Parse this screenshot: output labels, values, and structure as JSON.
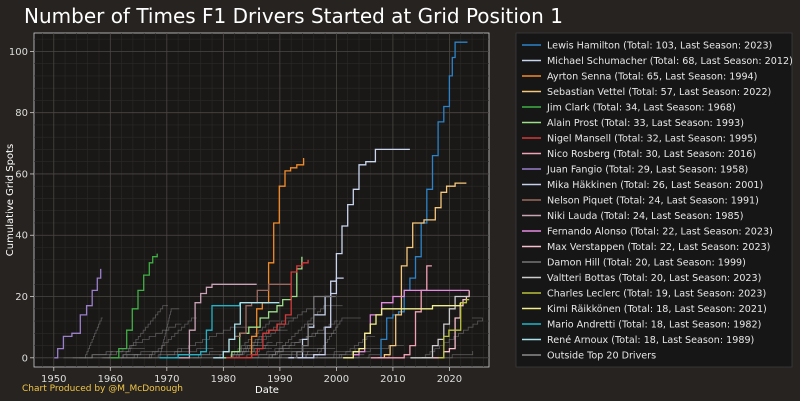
{
  "chart_data": {
    "type": "line",
    "title": "Number of Times F1 Drivers Started at Grid Position 1",
    "xlabel": "Date",
    "ylabel": "Cumulative Grid Spots",
    "xlim": [
      1946.5,
      2027
    ],
    "ylim": [
      -3,
      106
    ],
    "xticks": [
      1950,
      1960,
      1970,
      1980,
      1990,
      2000,
      2010,
      2020
    ],
    "yticks": [
      0,
      20,
      40,
      60,
      80,
      100
    ],
    "grid": true,
    "legend_position": "right",
    "credit": "Chart Produced by @M_McDonough",
    "series": [
      {
        "name": "Lewis Hamilton (Total: 103, Last Season: 2023)",
        "color": "#2b83c9",
        "x": [
          2007.3,
          2007.9,
          2008.9,
          2010,
          2011,
          2012,
          2013,
          2014,
          2015,
          2016,
          2017,
          2018,
          2019,
          2020,
          2020.5,
          2021,
          2023.2
        ],
        "y": [
          0,
          6,
          13,
          14,
          15,
          22,
          26,
          33,
          44,
          55,
          66,
          77,
          82,
          92,
          98,
          103,
          103
        ]
      },
      {
        "name": "Michael Schumacher (Total: 68, Last Season: 2012)",
        "color": "#c8d6ee",
        "x": [
          1991.7,
          1994,
          1995,
          1996,
          1998,
          1999,
          2000,
          2001,
          2002,
          2003,
          2004,
          2004.9,
          2005.2,
          2006.9,
          2010,
          2012,
          2013
        ],
        "y": [
          0,
          6,
          10,
          14,
          20,
          25,
          34,
          43,
          50,
          55,
          63,
          63,
          64,
          68,
          68,
          68,
          68
        ]
      },
      {
        "name": "Ayrton Senna (Total: 65, Last Season: 1994)",
        "color": "#f28c28",
        "x": [
          1984.1,
          1985,
          1985.9,
          1986.9,
          1988,
          1988.9,
          1989.9,
          1990.9,
          1991.9,
          1993,
          1994.2,
          1994.3
        ],
        "y": [
          0,
          7,
          16,
          18,
          31,
          44,
          56,
          61,
          62,
          63,
          65,
          65
        ]
      },
      {
        "name": "Sebastian Vettel (Total: 57, Last Season: 2022)",
        "color": "#f6c87a",
        "x": [
          2007.3,
          2008.5,
          2009.5,
          2010.5,
          2011.5,
          2012.5,
          2013.5,
          2014,
          2015.5,
          2016.5,
          2017.5,
          2018.5,
          2019.5,
          2021,
          2023
        ],
        "y": [
          0,
          1,
          4,
          14,
          30,
          36,
          44,
          44,
          45,
          45,
          49,
          54,
          56,
          57,
          57
        ]
      },
      {
        "name": "Jim Clark (Total: 34, Last Season: 1968)",
        "color": "#3fb045",
        "x": [
          1960.1,
          1961.5,
          1962.9,
          1963.9,
          1964.9,
          1965.9,
          1966.9,
          1967.5,
          1968.3
        ],
        "y": [
          0,
          3,
          9,
          16,
          22,
          27,
          31,
          33,
          34
        ]
      },
      {
        "name": "Alain Prost (Total: 33, Last Season: 1993)",
        "color": "#9de08a",
        "x": [
          1980.1,
          1981.5,
          1982.9,
          1984.5,
          1986.5,
          1988,
          1989.5,
          1990.5,
          1992,
          1993,
          1993.9
        ],
        "y": [
          0,
          2,
          8,
          10,
          13,
          15,
          17,
          19,
          20,
          29,
          33
        ]
      },
      {
        "name": "Nigel Mansell (Total: 32, Last Season: 1995)",
        "color": "#d23a3a",
        "x": [
          1980.5,
          1985,
          1986,
          1987,
          1988,
          1989.5,
          1991,
          1992,
          1993,
          1994,
          1995
        ],
        "y": [
          0,
          1,
          3,
          8,
          9,
          11,
          14,
          28,
          30,
          31,
          32
        ]
      },
      {
        "name": "Nico Rosberg (Total: 30, Last Season: 2016)",
        "color": "#f2a2b6",
        "x": [
          2006.1,
          2010,
          2012,
          2013,
          2014,
          2015,
          2016,
          2016.9
        ],
        "y": [
          0,
          0,
          1,
          4,
          15,
          22,
          30,
          30
        ]
      },
      {
        "name": "Juan Fangio (Total: 29, Last Season: 1958)",
        "color": "#9a7fcc",
        "x": [
          1950.1,
          1950.7,
          1951.7,
          1953.2,
          1954.7,
          1955.8,
          1956.8,
          1957.7,
          1958.3
        ],
        "y": [
          0,
          3,
          7,
          8,
          14,
          17,
          22,
          26,
          29
        ]
      },
      {
        "name": "Mika Häkkinen (Total: 26, Last Season: 2001)",
        "color": "#c8d0ec",
        "x": [
          1991.5,
          1996,
          1998,
          1999,
          2000,
          2001.3
        ],
        "y": [
          0,
          1,
          10,
          21,
          26,
          26
        ]
      },
      {
        "name": "Nelson Piquet (Total: 24, Last Season: 1991)",
        "color": "#9c6a5f",
        "x": [
          1978.7,
          1980,
          1981,
          1982,
          1983,
          1984,
          1985,
          1986,
          1988,
          1991.9
        ],
        "y": [
          0,
          2,
          6,
          7,
          8,
          17,
          18,
          22,
          24,
          24
        ]
      },
      {
        "name": "Niki Lauda (Total: 24, Last Season: 1985)",
        "color": "#c9a3b5",
        "x": [
          1971.5,
          1974,
          1975,
          1976,
          1977,
          1978,
          1985.9
        ],
        "y": [
          0,
          9,
          18,
          21,
          23,
          24,
          24
        ]
      },
      {
        "name": "Fernando Alonso (Total: 22, Last Season: 2023)",
        "color": "#e58be0",
        "x": [
          2001.2,
          2003,
          2004,
          2005,
          2006,
          2008,
          2010,
          2012,
          2023.5
        ],
        "y": [
          0,
          1,
          2,
          8,
          14,
          18,
          20,
          22,
          22
        ]
      },
      {
        "name": "Max Verstappen (Total: 22, Last Season: 2023)",
        "color": "#f6c0cc",
        "x": [
          2015.1,
          2019,
          2020,
          2021,
          2021.9,
          2022.4,
          2023,
          2023.5
        ],
        "y": [
          0,
          2,
          3,
          13,
          17,
          19,
          20,
          22
        ]
      },
      {
        "name": "Damon Hill (Total: 20, Last Season: 1999)",
        "color": "#777777",
        "x": [
          1992.5,
          1993,
          1994,
          1995,
          1996,
          1999.9
        ],
        "y": [
          0,
          2,
          4,
          11,
          20,
          20
        ]
      },
      {
        "name": "Valtteri Bottas (Total: 20, Last Season: 2023)",
        "color": "#cccccc",
        "x": [
          2013.1,
          2017,
          2018,
          2019,
          2020,
          2021,
          2023.5
        ],
        "y": [
          0,
          4,
          6,
          11,
          16,
          20,
          20
        ]
      },
      {
        "name": "Charles Leclerc (Total: 19, Last Season: 2023)",
        "color": "#b9c23c",
        "x": [
          2018.1,
          2019,
          2019.9,
          2022,
          2023,
          2023.5
        ],
        "y": [
          0,
          7,
          9,
          18,
          19,
          19
        ]
      },
      {
        "name": "Kimi Räikkönen (Total: 18, Last Season: 2021)",
        "color": "#f2f08a",
        "x": [
          2001.2,
          2003,
          2004,
          2005,
          2006,
          2007,
          2008,
          2017,
          2021.9
        ],
        "y": [
          0,
          2,
          3,
          8,
          11,
          14,
          16,
          17,
          18
        ]
      },
      {
        "name": "Mario Andretti (Total: 18, Last Season: 1982)",
        "color": "#1fb5c8",
        "x": [
          1968.7,
          1972,
          1976,
          1977,
          1978,
          1982.9
        ],
        "y": [
          0,
          1,
          2,
          9,
          17,
          18
        ]
      },
      {
        "name": "René Arnoux (Total: 18, Last Season: 1989)",
        "color": "#a8e2ec",
        "x": [
          1978.2,
          1980,
          1981,
          1982,
          1983,
          1989.9
        ],
        "y": [
          0,
          2,
          6,
          11,
          18,
          18
        ]
      },
      {
        "name": "Outside Top 20 Drivers",
        "color": "#8c8c8c",
        "x": [],
        "y": []
      }
    ]
  }
}
